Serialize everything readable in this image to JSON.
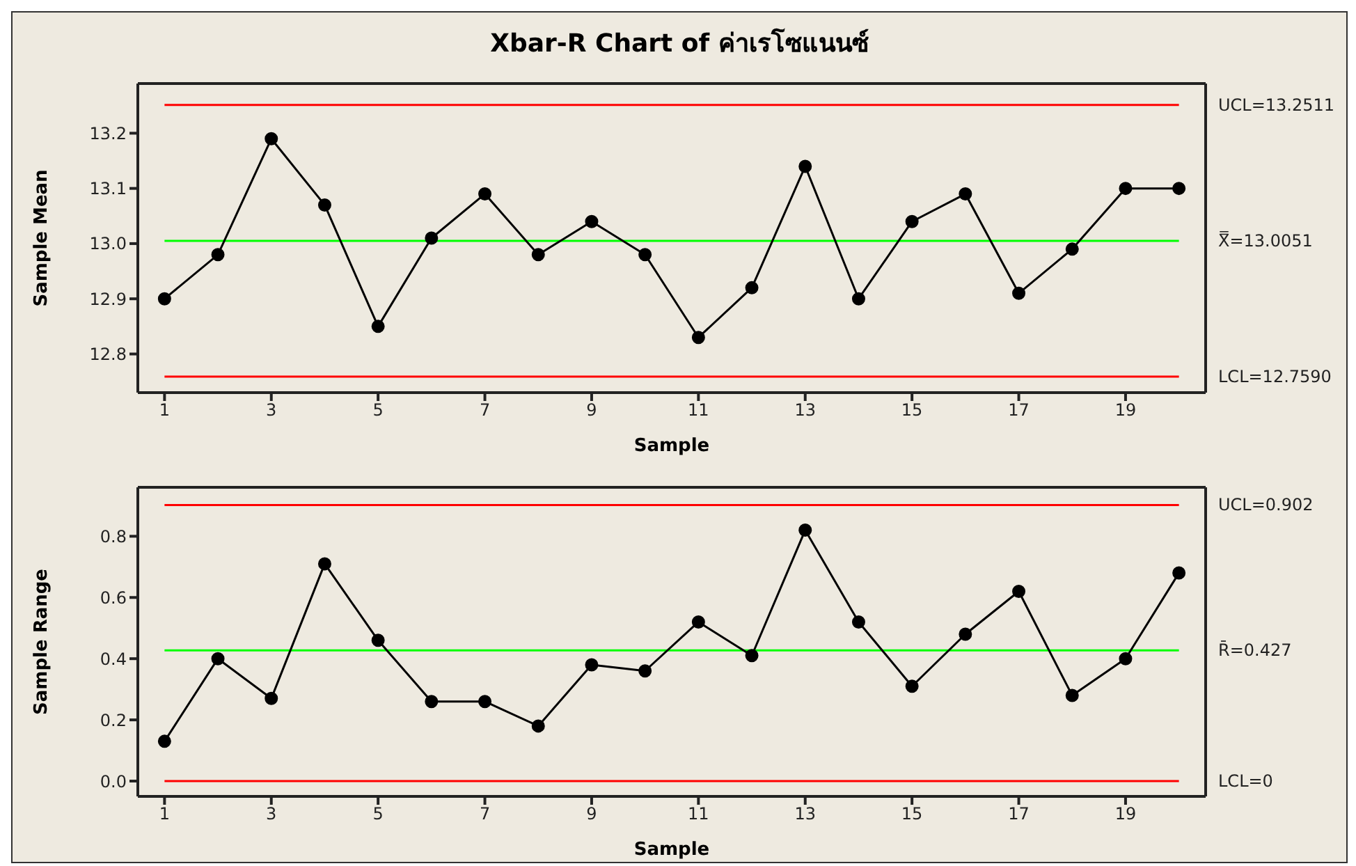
{
  "chart_data": [
    {
      "type": "line",
      "title": "Xbar-R Chart of ค่าเรโซแนนซ์",
      "xlabel": "Sample",
      "ylabel": "Sample Mean",
      "x": [
        1,
        2,
        3,
        4,
        5,
        6,
        7,
        8,
        9,
        10,
        11,
        12,
        13,
        14,
        15,
        16,
        17,
        18,
        19,
        20
      ],
      "series": [
        {
          "color": "#000000",
          "values": [
            12.9,
            12.98,
            13.19,
            13.07,
            12.85,
            13.01,
            13.09,
            12.98,
            13.04,
            12.98,
            12.83,
            12.92,
            13.14,
            12.9,
            13.04,
            13.09,
            12.91,
            12.99,
            13.1,
            13.1
          ]
        }
      ],
      "xlim": [
        0.5,
        20.5
      ],
      "xticks": [
        1,
        3,
        5,
        7,
        9,
        11,
        13,
        15,
        17,
        19
      ],
      "ylim": [
        12.73,
        13.29
      ],
      "yticks": [
        12.8,
        12.9,
        {
          "value": 13.0,
          "label": "13.0"
        },
        13.1,
        13.2
      ],
      "ref_lines": [
        {
          "axis": "y",
          "value": 13.2511,
          "label": "UCL=13.2511",
          "color": "#ff0000"
        },
        {
          "axis": "y",
          "value": 13.0051,
          "label": "X̿=13.0051",
          "color": "#00ff00"
        },
        {
          "axis": "y",
          "value": 12.759,
          "label": "LCL=12.7590",
          "color": "#ff0000"
        }
      ],
      "marker": "circle",
      "grid": false
    },
    {
      "type": "line",
      "xlabel": "Sample",
      "ylabel": "Sample Range",
      "x": [
        1,
        2,
        3,
        4,
        5,
        6,
        7,
        8,
        9,
        10,
        11,
        12,
        13,
        14,
        15,
        16,
        17,
        18,
        19,
        20
      ],
      "series": [
        {
          "color": "#000000",
          "values": [
            0.13,
            0.4,
            0.27,
            0.71,
            0.46,
            0.26,
            0.26,
            0.18,
            0.38,
            0.36,
            0.52,
            0.41,
            0.82,
            0.52,
            0.31,
            0.48,
            0.62,
            0.28,
            0.4,
            0.68
          ]
        }
      ],
      "xlim": [
        0.5,
        20.5
      ],
      "xticks": [
        1,
        3,
        5,
        7,
        9,
        11,
        13,
        15,
        17,
        19
      ],
      "ylim": [
        -0.05,
        0.96
      ],
      "yticks": [
        {
          "value": 0,
          "label": "0.0"
        },
        0.2,
        0.4,
        0.6,
        0.8
      ],
      "ref_lines": [
        {
          "axis": "y",
          "value": 0.902,
          "label": "UCL=0.902",
          "color": "#ff0000"
        },
        {
          "axis": "y",
          "value": 0.427,
          "label": "R̄=0.427",
          "color": "#00ff00"
        },
        {
          "axis": "y",
          "value": 0,
          "label": "LCL=0",
          "color": "#ff0000"
        }
      ],
      "marker": "circle",
      "grid": false
    }
  ]
}
